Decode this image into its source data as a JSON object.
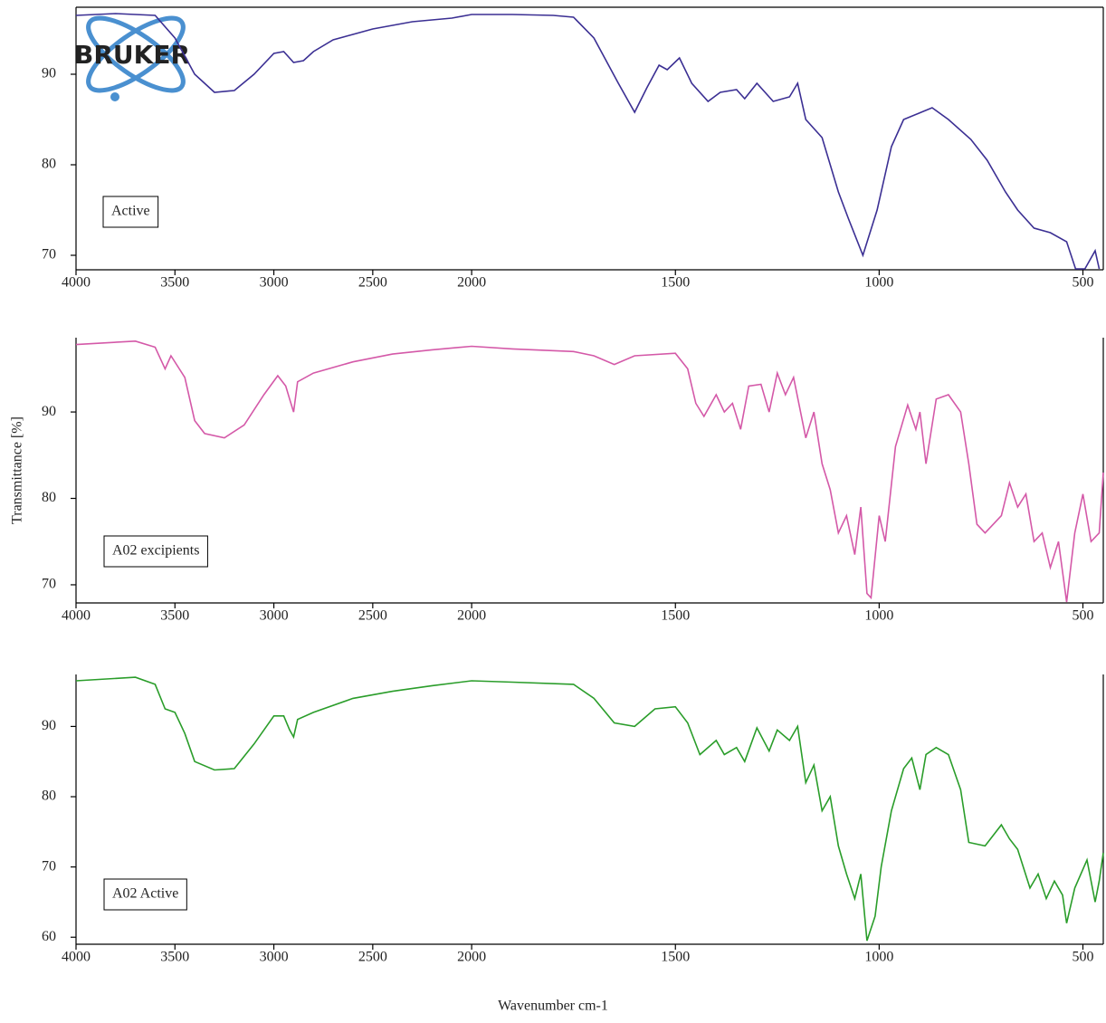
{
  "logo": "BRUKER",
  "chart_data": [
    {
      "type": "line",
      "xlim": [
        4000,
        450
      ],
      "xscale_break": 2000,
      "xticks": [
        4000,
        3500,
        3000,
        2500,
        2000,
        1500,
        1000,
        500
      ],
      "ylim": [
        68.4,
        97.4
      ],
      "yticks": [
        70,
        80,
        90
      ],
      "x": [
        4000,
        3800,
        3600,
        3500,
        3400,
        3300,
        3200,
        3100,
        3000,
        2950,
        2900,
        2850,
        2800,
        2700,
        2600,
        2500,
        2400,
        2300,
        2200,
        2100,
        2000,
        1900,
        1800,
        1750,
        1700,
        1640,
        1600,
        1570,
        1540,
        1520,
        1490,
        1460,
        1420,
        1390,
        1350,
        1330,
        1300,
        1260,
        1220,
        1200,
        1180,
        1140,
        1100,
        1075,
        1040,
        1005,
        970,
        940,
        870,
        830,
        775,
        735,
        690,
        660,
        620,
        580,
        540,
        518,
        495,
        470,
        460
      ],
      "series": [
        {
          "name": "Active",
          "color": "#3b2f93",
          "values": [
            96.5,
            96.7,
            96.5,
            94,
            90,
            88,
            88.2,
            90,
            92.3,
            92.5,
            91.3,
            91.5,
            92.5,
            93.8,
            94.4,
            95,
            95.4,
            95.8,
            96,
            96.2,
            96.6,
            96.6,
            96.5,
            96.3,
            94,
            89,
            85.8,
            88.5,
            91,
            90.5,
            91.8,
            89,
            87,
            88,
            88.3,
            87.3,
            89,
            87,
            87.5,
            89,
            85,
            83,
            77,
            74,
            70,
            75,
            82,
            85,
            86.3,
            85,
            82.8,
            80.5,
            77,
            75,
            73,
            72.5,
            71.5,
            68.5,
            68.5,
            70.5,
            68.5
          ]
        }
      ]
    },
    {
      "type": "line",
      "xlim": [
        4000,
        450
      ],
      "xscale_break": 2000,
      "xticks": [
        4000,
        3500,
        3000,
        2500,
        2000,
        1500,
        1000,
        500
      ],
      "ylim": [
        67.9,
        98.6
      ],
      "yticks": [
        70,
        80,
        90
      ],
      "ylabel": "Transmittance [%]",
      "x": [
        4000,
        3700,
        3600,
        3550,
        3520,
        3450,
        3400,
        3350,
        3250,
        3150,
        3050,
        2980,
        2940,
        2920,
        2900,
        2880,
        2800,
        2600,
        2400,
        2200,
        2000,
        1900,
        1750,
        1700,
        1650,
        1600,
        1500,
        1470,
        1450,
        1430,
        1400,
        1380,
        1360,
        1340,
        1320,
        1290,
        1270,
        1250,
        1230,
        1210,
        1180,
        1160,
        1140,
        1120,
        1100,
        1080,
        1060,
        1045,
        1030,
        1020,
        1000,
        985,
        960,
        930,
        910,
        900,
        885,
        860,
        830,
        800,
        780,
        760,
        740,
        700,
        680,
        660,
        640,
        620,
        600,
        580,
        560,
        540,
        520,
        500,
        480,
        460,
        450
      ],
      "series": [
        {
          "name": "A02 excipients",
          "color": "#d459a8",
          "values": [
            97.8,
            98.2,
            97.5,
            95,
            96.5,
            94,
            89,
            87.5,
            87,
            88.5,
            92,
            94.2,
            93,
            91.5,
            90,
            93.5,
            94.5,
            95.8,
            96.7,
            97.2,
            97.6,
            97.3,
            97,
            96.5,
            95.5,
            96.5,
            96.8,
            95,
            91,
            89.5,
            92,
            90,
            91,
            88,
            93,
            93.2,
            90,
            94.5,
            92,
            94,
            87,
            90,
            84,
            81,
            76,
            78,
            73.5,
            79,
            69,
            68.5,
            78,
            75,
            86,
            90.8,
            88,
            90,
            84,
            91.5,
            92,
            90,
            84,
            77,
            76,
            78,
            81.8,
            79,
            80.5,
            75,
            76,
            72,
            75,
            68,
            76,
            80.5,
            75,
            76,
            83
          ]
        }
      ]
    },
    {
      "type": "line",
      "xlim": [
        4000,
        450
      ],
      "xscale_break": 2000,
      "xticks": [
        4000,
        3500,
        3000,
        2500,
        2000,
        1500,
        1000,
        500
      ],
      "ylim": [
        59,
        97.4
      ],
      "yticks": [
        60,
        70,
        80,
        90
      ],
      "xlabel": "Wavenumber cm-1",
      "x": [
        4000,
        3700,
        3600,
        3550,
        3500,
        3450,
        3400,
        3300,
        3200,
        3100,
        3000,
        2950,
        2920,
        2900,
        2880,
        2800,
        2600,
        2400,
        2200,
        2000,
        1900,
        1750,
        1700,
        1650,
        1600,
        1550,
        1500,
        1470,
        1440,
        1400,
        1380,
        1350,
        1330,
        1300,
        1270,
        1250,
        1220,
        1200,
        1180,
        1160,
        1140,
        1120,
        1100,
        1080,
        1060,
        1045,
        1030,
        1010,
        995,
        970,
        940,
        920,
        900,
        885,
        860,
        830,
        800,
        780,
        740,
        700,
        680,
        660,
        630,
        610,
        590,
        570,
        550,
        540,
        520,
        490,
        470,
        460,
        450
      ],
      "series": [
        {
          "name": "A02 Active",
          "color": "#2a9d2a",
          "values": [
            96.5,
            97,
            96,
            92.5,
            92,
            89,
            85,
            83.8,
            84,
            87.5,
            91.5,
            91.5,
            89.5,
            88.5,
            91,
            92,
            94,
            95,
            95.8,
            96.5,
            96.3,
            96,
            94,
            90.5,
            90,
            92.5,
            92.8,
            90.5,
            86,
            88,
            86,
            87,
            85,
            89.8,
            86.5,
            89.5,
            88,
            90,
            82,
            84.5,
            78,
            80,
            73,
            69,
            65.5,
            69,
            59.5,
            63,
            70,
            78,
            84,
            85.5,
            81,
            86,
            87,
            86,
            81,
            73.5,
            73,
            76,
            74,
            72.5,
            67,
            69,
            65.5,
            68,
            66,
            62,
            67,
            71,
            65,
            68,
            72
          ]
        }
      ]
    }
  ]
}
